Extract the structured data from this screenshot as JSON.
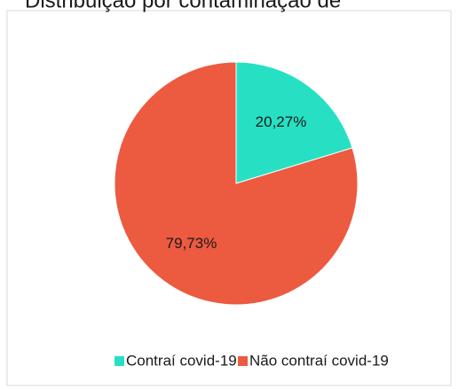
{
  "chart_data": {
    "type": "pie",
    "title": "Distribuição por contaminação de",
    "categories": [
      "Contraí covid-19",
      "Não contraí covid-19"
    ],
    "values": [
      20.27,
      79.73
    ],
    "value_labels": [
      "20,27%",
      "79,73%"
    ],
    "colors": [
      "#27e0c4",
      "#ec5a40"
    ],
    "legend": "bottom"
  }
}
